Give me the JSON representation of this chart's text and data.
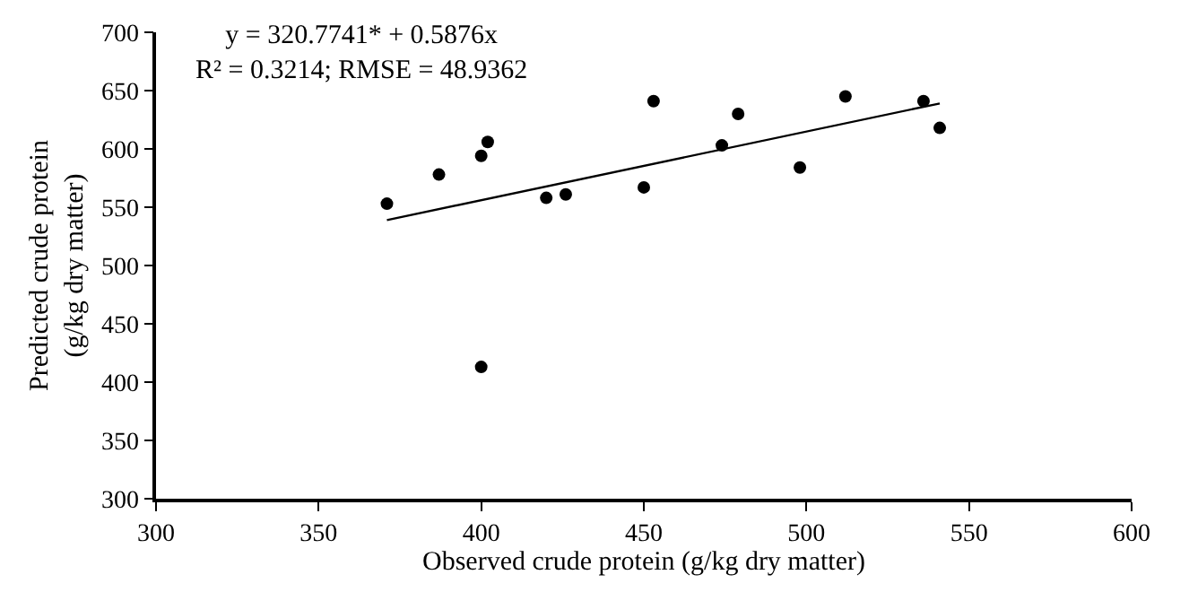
{
  "chart_data": {
    "type": "scatter",
    "xlabel": "Observed crude protein (g/kg dry matter)",
    "ylabel": "Predicted crude protein\n(g/kg dry matter)",
    "series": [
      {
        "color": "#000000",
        "marker": "circle",
        "x": [
          371,
          387,
          400,
          402,
          400,
          420,
          426,
          450,
          453,
          474,
          479,
          498,
          512,
          536,
          541
        ],
        "values": [
          553,
          578,
          594,
          606,
          413,
          558,
          561,
          567,
          641,
          603,
          630,
          584,
          645,
          641,
          618
        ]
      },
      {
        "type": "line",
        "color": "#000000",
        "marker": "none",
        "line_style": "solid",
        "x": [
          371,
          541
        ],
        "values": [
          539,
          639
        ]
      }
    ],
    "annotations": [
      "y = 320.7741* + 0.5876x\nR² = 0.3214; RMSE = 48.9362"
    ],
    "xlim": [
      300,
      600
    ],
    "xticks": [
      300,
      350,
      400,
      450,
      500,
      550,
      600
    ],
    "ylim": [
      300,
      700
    ],
    "yticks": [
      300,
      350,
      400,
      450,
      500,
      550,
      600,
      650,
      700
    ]
  }
}
